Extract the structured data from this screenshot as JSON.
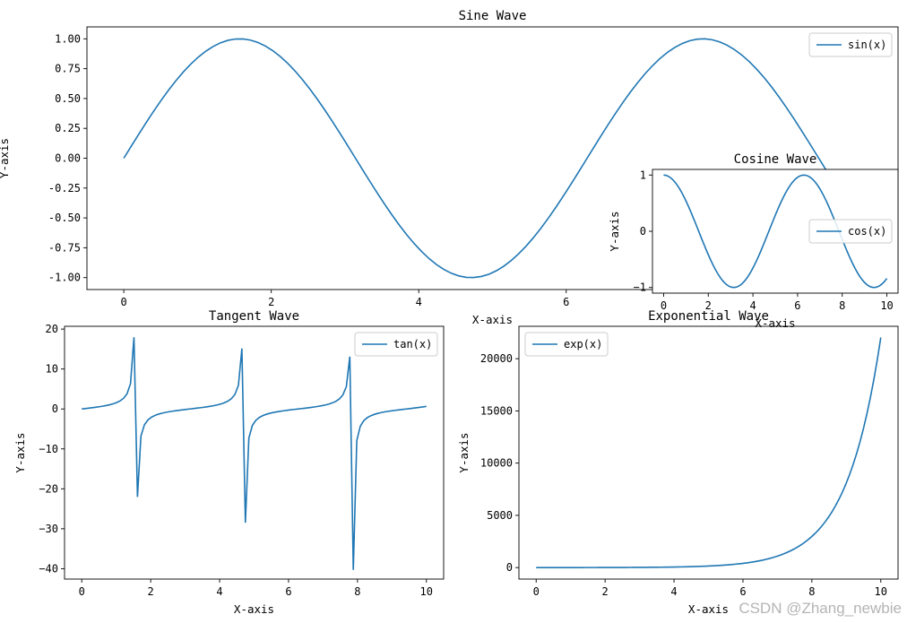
{
  "figure": {
    "watermark": "CSDN @Zhang_newbie"
  },
  "chart_data": [
    {
      "id": "sine",
      "type": "line",
      "title": "Sine Wave",
      "xlabel": "X-axis",
      "ylabel": "Y-axis",
      "xlim": [
        -0.5,
        10.5
      ],
      "ylim": [
        -1.1,
        1.1
      ],
      "xticks": [
        0,
        2,
        4,
        6
      ],
      "xtick_labels": [
        "0",
        "2",
        "4",
        "6"
      ],
      "yticks": [
        -1,
        -0.75,
        -0.5,
        -0.25,
        0,
        0.25,
        0.5,
        0.75,
        1
      ],
      "ytick_labels": [
        "-1.00",
        "-0.75",
        "-0.50",
        "-0.25",
        "0.00",
        "0.25",
        "0.50",
        "0.75",
        "1.00"
      ],
      "legend": {
        "label": "sin(x)",
        "loc": "upper right"
      },
      "color": "#1f77b4",
      "series": [
        {
          "name": "sin(x)",
          "function": "sin",
          "x_range": [
            0,
            10
          ],
          "n_points": 100
        }
      ]
    },
    {
      "id": "cosine",
      "type": "line",
      "title": "Cosine Wave",
      "xlabel": "X-axis",
      "ylabel": "Y-axis",
      "xlim": [
        -0.5,
        10.5
      ],
      "ylim": [
        -1.1,
        1.1
      ],
      "xticks": [
        0,
        2,
        4,
        6,
        8,
        10
      ],
      "xtick_labels": [
        "0",
        "2",
        "4",
        "6",
        "8",
        "10"
      ],
      "yticks": [
        -1,
        0,
        1
      ],
      "ytick_labels": [
        "−1",
        "0",
        "1"
      ],
      "legend": {
        "label": "cos(x)",
        "loc": "center right"
      },
      "color": "#1f77b4",
      "series": [
        {
          "name": "cos(x)",
          "function": "cos",
          "x_range": [
            0,
            10
          ],
          "n_points": 100
        }
      ]
    },
    {
      "id": "tangent",
      "type": "line",
      "title": "Tangent Wave",
      "xlabel": "X-axis",
      "ylabel": "Y-axis",
      "xlim": [
        -0.5,
        10.5
      ],
      "ylim": [
        -42.6,
        20.7
      ],
      "xticks": [
        0,
        2,
        4,
        6,
        8,
        10
      ],
      "xtick_labels": [
        "0",
        "2",
        "4",
        "6",
        "8",
        "10"
      ],
      "yticks": [
        -40,
        -30,
        -20,
        -10,
        0,
        10,
        20
      ],
      "ytick_labels": [
        "−40",
        "−30",
        "−20",
        "−10",
        "0",
        "10",
        "20"
      ],
      "legend": {
        "label": "tan(x)",
        "loc": "upper right"
      },
      "color": "#1f77b4",
      "series": [
        {
          "name": "tan(x)",
          "function": "tan",
          "x_range": [
            0,
            10
          ],
          "n_points": 100
        }
      ]
    },
    {
      "id": "exponential",
      "type": "line",
      "title": "Exponential Wave",
      "xlabel": "X-axis",
      "ylabel": "Y-axis",
      "xlim": [
        -0.5,
        10.5
      ],
      "ylim": [
        -1100,
        23100
      ],
      "xticks": [
        0,
        2,
        4,
        6,
        8,
        10
      ],
      "xtick_labels": [
        "0",
        "2",
        "4",
        "6",
        "8",
        "10"
      ],
      "yticks": [
        0,
        5000,
        10000,
        15000,
        20000
      ],
      "ytick_labels": [
        "0",
        "5000",
        "10000",
        "15000",
        "20000"
      ],
      "legend": {
        "label": "exp(x)",
        "loc": "upper left"
      },
      "color": "#1f77b4",
      "series": [
        {
          "name": "exp(x)",
          "function": "exp",
          "x_range": [
            0,
            10
          ],
          "n_points": 100
        }
      ]
    }
  ]
}
